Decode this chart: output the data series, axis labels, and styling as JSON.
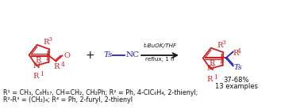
{
  "bg_color": "#ffffff",
  "red": "#cc2222",
  "blue": "#2222cc",
  "black": "#111111",
  "figsize": [
    3.78,
    1.38
  ],
  "dpi": 100,
  "footnote_line1": "R¹ = CH₃, C₈H₁₇, CH=CH₂, CH₂Ph; R² = Ph, 4-ClC₆H₄, 2-thienyl;",
  "footnote_line2": "R²-R³ = (CH₂)₄; R⁴ = Ph, 2-furyl, 2-thienyl",
  "yield_text": "37-68%",
  "examples_text": "13 examples",
  "arrow_label1": "t-BuOK/THF",
  "arrow_label2": "reflux, 1 h"
}
